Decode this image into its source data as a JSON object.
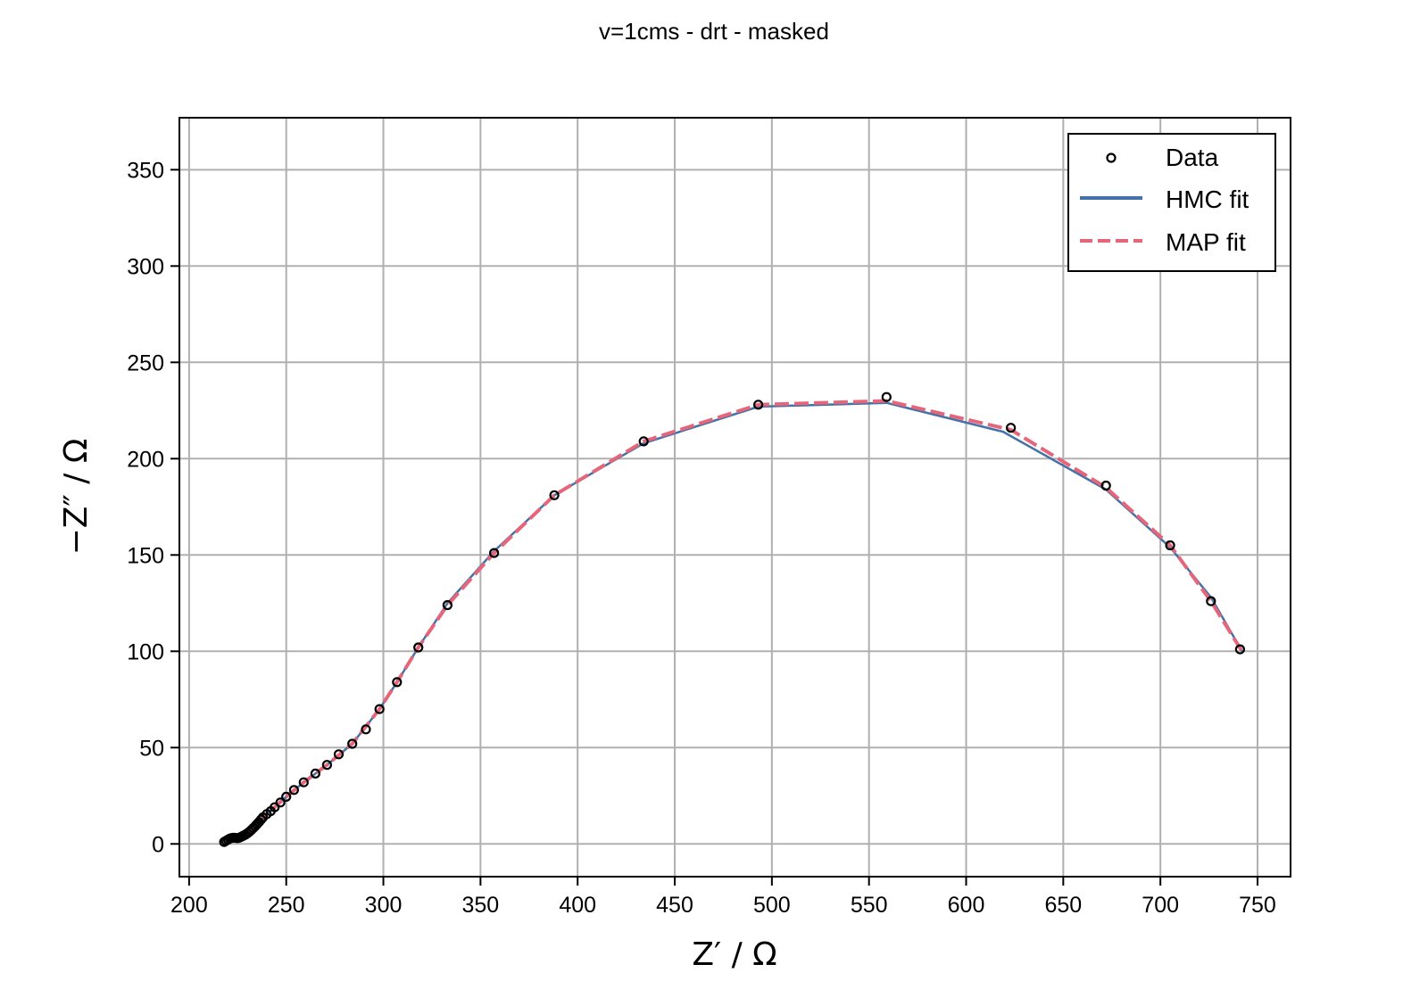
{
  "chart_data": {
    "type": "line",
    "title": "v=1cms - drt - masked",
    "xlabel": "Z′ / Ω",
    "ylabel": "−Z″ / Ω",
    "xlim": [
      195,
      767
    ],
    "ylim": [
      -17,
      377
    ],
    "xticks": [
      200,
      250,
      300,
      350,
      400,
      450,
      500,
      550,
      600,
      650,
      700,
      750
    ],
    "yticks": [
      0,
      50,
      100,
      150,
      200,
      250,
      300,
      350
    ],
    "grid": true,
    "legend": {
      "position": "top-right",
      "entries": [
        "Data",
        "HMC fit",
        "MAP fit"
      ]
    },
    "colors": {
      "hmc": "#4472a8",
      "map": "#e5667a",
      "marker_edge": "#000000",
      "grid": "#b0b0b0"
    },
    "series": [
      {
        "name": "Data",
        "kind": "scatter",
        "x": [
          218,
          219,
          220,
          221,
          222,
          223,
          224,
          225,
          226,
          227,
          228,
          229,
          230,
          231,
          232,
          233,
          234,
          235,
          236,
          237,
          238,
          240,
          242,
          244,
          247,
          250,
          254,
          259,
          265,
          271,
          277,
          284,
          291,
          298,
          307,
          318,
          333,
          357,
          388,
          434,
          493,
          559,
          623,
          672,
          705,
          726,
          741
        ],
        "y": [
          1,
          1.6,
          2.2,
          2.8,
          3.1,
          3.2,
          3.1,
          3.0,
          3.3,
          3.8,
          4.3,
          4.8,
          5.5,
          6.3,
          7.2,
          8.2,
          9.2,
          10.3,
          11.4,
          12.6,
          13.8,
          15.5,
          17.0,
          19,
          21.5,
          24.5,
          28,
          32,
          36.5,
          41,
          46.5,
          52,
          59.5,
          70,
          84,
          102,
          124,
          151,
          181,
          209,
          228,
          232,
          216,
          186,
          155,
          126,
          101
        ]
      },
      {
        "name": "HMC fit",
        "kind": "line",
        "x": [
          218,
          220,
          223,
          226,
          229,
          232,
          236,
          240,
          244,
          250,
          259,
          271,
          284,
          298,
          307,
          318,
          333,
          357,
          388,
          434,
          493,
          559,
          619,
          672,
          705,
          726,
          742
        ],
        "y": [
          1,
          2.2,
          3.2,
          3.2,
          4.8,
          7.2,
          11.4,
          15.5,
          19,
          24.5,
          32,
          41,
          52,
          70,
          84,
          102,
          125,
          152,
          181,
          208,
          227,
          229,
          214,
          184,
          154,
          128,
          100
        ]
      },
      {
        "name": "MAP fit",
        "kind": "line",
        "x": [
          218,
          220,
          223,
          226,
          229,
          232,
          236,
          240,
          244,
          250,
          259,
          271,
          284,
          298,
          307,
          318,
          333,
          357,
          388,
          434,
          493,
          559,
          623,
          672,
          705,
          726,
          742
        ],
        "y": [
          1,
          2.2,
          3.2,
          3.2,
          4.8,
          7.2,
          11.4,
          15.5,
          19,
          24.5,
          32,
          41,
          52,
          70,
          84,
          102,
          124,
          151,
          181,
          209,
          228,
          230,
          215,
          185,
          155,
          126,
          100
        ]
      }
    ]
  }
}
